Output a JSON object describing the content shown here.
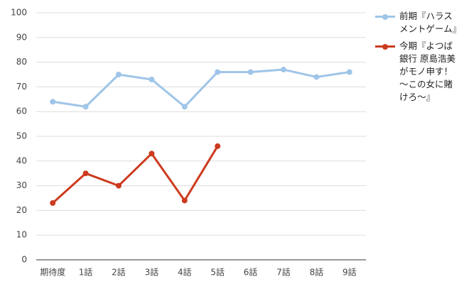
{
  "chart_data": {
    "type": "line",
    "categories": [
      "期待度",
      "1話",
      "2話",
      "3話",
      "4話",
      "5話",
      "6話",
      "7話",
      "8話",
      "9話"
    ],
    "series": [
      {
        "name": "前期『ハラスメントゲーム』",
        "color": "#9fc5e8",
        "values": [
          64,
          62,
          75,
          73,
          62,
          76,
          76,
          77,
          74,
          76
        ]
      },
      {
        "name": "今期『よつば銀行 原島浩美がモノ申す！ ～この女に賭けろ～』",
        "color": "#cc3b1f",
        "values": [
          23,
          35,
          30,
          43,
          24,
          46,
          null,
          null,
          null,
          null
        ]
      }
    ],
    "ylim": [
      0,
      100
    ],
    "yticks": [
      0,
      10,
      20,
      30,
      40,
      50,
      60,
      70,
      80,
      90,
      100
    ],
    "grid": true,
    "legend": "right"
  }
}
